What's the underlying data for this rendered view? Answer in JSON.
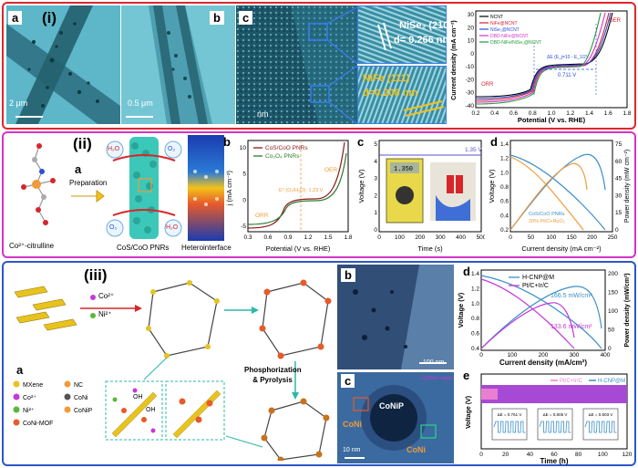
{
  "colors": {
    "row1_border": "#e0262c",
    "row2_border": "#d633c8",
    "row3_border": "#2b57c9"
  },
  "row1": {
    "label_a": "a",
    "label_i": "(i)",
    "label_b": "b",
    "label_c": "c",
    "scale_a": "2 μm",
    "scale_b": "0.5 μm",
    "scale_c": "nm",
    "hr1_text": "NiSe₂ (210)",
    "hr1_d": "d= 0.266 nm",
    "hr2_text": "NiFe (111)",
    "hr2_d": "d=0.208 nm",
    "chart1": {
      "ylabel": "Current density (mA cm⁻²)",
      "xlabel": "Potential (V vs. RHE)",
      "xticks": [
        "0.2",
        "0.4",
        "0.6",
        "0.8",
        "1.0",
        "1.2",
        "1.4",
        "1.6",
        "1.8"
      ],
      "yticks": [
        "30",
        "20",
        "10",
        "0",
        "-10",
        "-20",
        "-30",
        "-40"
      ],
      "legend": [
        "NCNT",
        "NiFe@NCNT",
        "NiSe₂@NCNT",
        "DBD-NiFe@NCNT",
        "DBD-NiFe/NiSe₂@NCNT"
      ],
      "oer": "OER",
      "orr": "ORR",
      "delta": "ΔE (E_j=10 - E_1/2)",
      "delta_val": "0.711 V"
    }
  },
  "row2": {
    "label_ii": "(ii)",
    "label_a": "a",
    "mol_caption": "Co²⁺-citrulline",
    "prep": "Preparation",
    "nano_caption": "CoS/CoO PNRs",
    "hetero_caption": "Heterointerface",
    "h2o": "H₂O",
    "o2": "O₂",
    "chart_b": {
      "label": "b",
      "ylabel": "j (mA cm⁻²)",
      "xlabel": "Potential (V vs. RHE)",
      "xticks": [
        "0.3",
        "0.6",
        "0.9",
        "1.2",
        "1.5",
        "1.8"
      ],
      "yticks": [
        "10",
        "5",
        "0",
        "-5"
      ],
      "legend": [
        "CoS/CoO PNRs",
        "Co₃O₄ PNRs"
      ],
      "oer": "OER",
      "orr": "ORR",
      "eq": "E° (O₂/H₂O): 1.23 V"
    },
    "chart_c": {
      "label": "c",
      "ylabel": "Voltage (V)",
      "xlabel": "Time (s)",
      "xticks": [
        "0",
        "100",
        "200",
        "300",
        "400",
        "500"
      ],
      "yticks": [
        "0",
        "1",
        "2",
        "3",
        "4",
        "5"
      ],
      "value": "1.35 V",
      "meter": "1.350"
    },
    "chart_d": {
      "label": "d",
      "ylabel": "Voltage (V)",
      "ylabel2": "Power density (mW cm⁻²)",
      "xlabel": "Current density (mA cm⁻²)",
      "xticks": [
        "0",
        "50",
        "100",
        "150",
        "200",
        "250"
      ],
      "yticks": [
        "0.2",
        "0.4",
        "0.6",
        "0.8",
        "1.0",
        "1.2",
        "1.4"
      ],
      "y2ticks": [
        "0",
        "15",
        "30",
        "45",
        "60",
        "75"
      ],
      "legend": [
        "CoS/CoO PNRs",
        "20% Pt/C+RuO₂"
      ]
    }
  },
  "row3": {
    "label_iii": "(iii)",
    "label_a": "a",
    "co": "Co²⁺",
    "ni": "Ni²⁺",
    "phos": "Phosphorization & Pyrolysis",
    "legend": [
      "MXene",
      "Co²⁺",
      "Ni²⁺",
      "CoNi-MOF",
      "NC",
      "CoNi",
      "CoNiP"
    ],
    "oh": "OH",
    "label_b": "b",
    "scale_b": "100 nm",
    "label_c": "c",
    "c_conip": "CoNiP",
    "c_coni1": "CoNi",
    "c_coni2": "CoNi",
    "c_carbon": "Carbon layer",
    "scale_c": "10 nm",
    "chart_d": {
      "label": "d",
      "ylabel": "Voltage (V)",
      "ylabel2": "Power density (mW/cm²)",
      "xlabel": "Current density (mA/cm²)",
      "xticks": [
        "0",
        "100",
        "200",
        "300",
        "400"
      ],
      "yticks": [
        "0.4",
        "0.6",
        "0.8",
        "1.0",
        "1.2",
        "1.4"
      ],
      "y2ticks": [
        "0",
        "50",
        "100",
        "150",
        "200"
      ],
      "legend": [
        "H-CNP@M",
        "Pt/C+Ir/C"
      ],
      "peak1": "166.5 mW/cm²",
      "peak2": "133.6 mW/cm²"
    },
    "chart_e": {
      "label": "e",
      "ylabel": "Voltage (V)",
      "xlabel": "Time (h)",
      "xticks": [
        "0",
        "20",
        "40",
        "60",
        "80",
        "100",
        "120"
      ],
      "legend": [
        "Pt/C+Ir/C",
        "H-CNP@M"
      ],
      "insets": [
        "ΔE = 0.761 V",
        "ΔE = 0.805 V",
        "ΔE = 0.803 V"
      ]
    }
  }
}
